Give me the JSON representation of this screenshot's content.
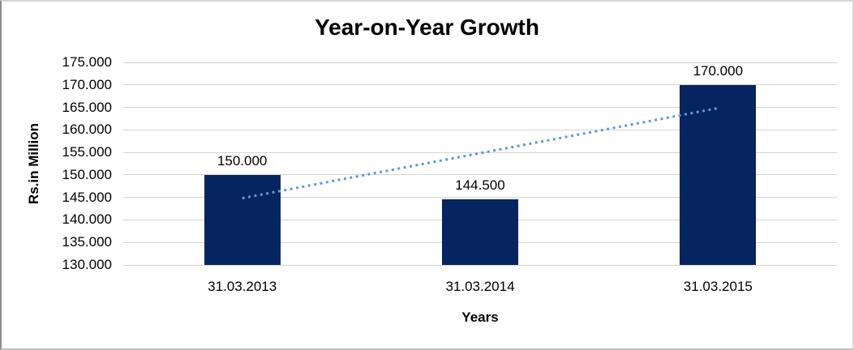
{
  "chart_data": {
    "type": "bar",
    "title": "Year-on-Year Growth",
    "xlabel": "Years",
    "ylabel": "Rs.in Million",
    "categories": [
      "31.03.2013",
      "31.03.2014",
      "31.03.2015"
    ],
    "values": [
      150.0,
      144.5,
      170.0
    ],
    "data_labels": [
      "150.000",
      "144.500",
      "170.000"
    ],
    "ylim": [
      130,
      175
    ],
    "ytick_step": 5,
    "yticks": [
      {
        "value": 130,
        "label": "130.000"
      },
      {
        "value": 135,
        "label": "135.000"
      },
      {
        "value": 140,
        "label": "140.000"
      },
      {
        "value": 145,
        "label": "145.000"
      },
      {
        "value": 150,
        "label": "150.000"
      },
      {
        "value": 155,
        "label": "155.000"
      },
      {
        "value": 160,
        "label": "160.000"
      },
      {
        "value": 165,
        "label": "165.000"
      },
      {
        "value": 170,
        "label": "170.000"
      },
      {
        "value": 175,
        "label": "175.000"
      }
    ],
    "grid": true,
    "legend": false,
    "bar_color": "#06245F",
    "gridline_color": "#d4d4d4",
    "trendline": {
      "type": "linear",
      "style": "dotted",
      "color": "#5B9BD5",
      "start_value": 144.83,
      "end_value": 164.83
    }
  }
}
